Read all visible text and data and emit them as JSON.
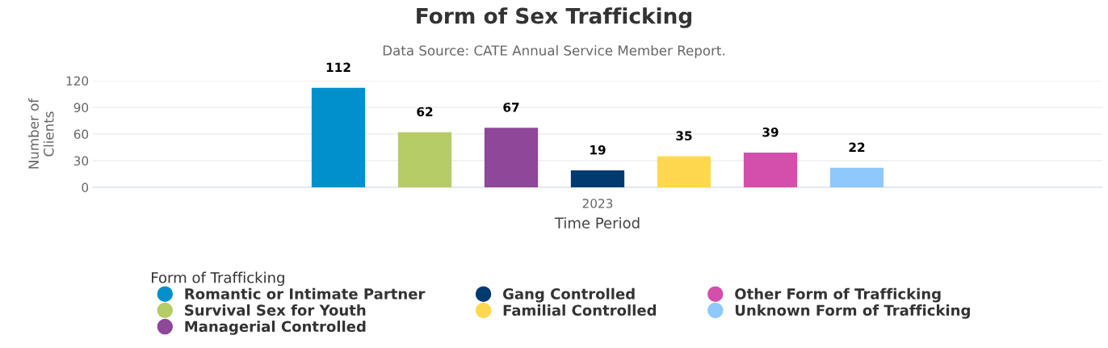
{
  "chart_data": {
    "type": "bar",
    "title": "Form of Sex Trafficking",
    "subtitle": "Data Source: CATE Annual Service Member Report.",
    "xlabel": "Time Period",
    "ylabel": "Number of\nClients",
    "legend_title": "Form of Trafficking",
    "categories": [
      "2023"
    ],
    "series": [
      {
        "name": "Romantic or Intimate Partner",
        "color": "#0090cc",
        "values": [
          112
        ]
      },
      {
        "name": "Survival Sex for Youth",
        "color": "#b5cc67",
        "values": [
          62
        ]
      },
      {
        "name": "Managerial Controlled",
        "color": "#8e4799",
        "values": [
          67
        ]
      },
      {
        "name": "Gang Controlled",
        "color": "#003a70",
        "values": [
          19
        ]
      },
      {
        "name": "Familial Controlled",
        "color": "#ffd84f",
        "values": [
          35
        ]
      },
      {
        "name": "Other Form of Trafficking",
        "color": "#d24fab",
        "values": [
          39
        ]
      },
      {
        "name": "Unknown Form of Trafficking",
        "color": "#8fc8fb",
        "values": [
          22
        ]
      }
    ],
    "ylim": [
      0,
      120
    ],
    "yticks": [
      0,
      30,
      60,
      90,
      120
    ],
    "grid": "y",
    "legend": "bottom left",
    "data_labels": true
  }
}
